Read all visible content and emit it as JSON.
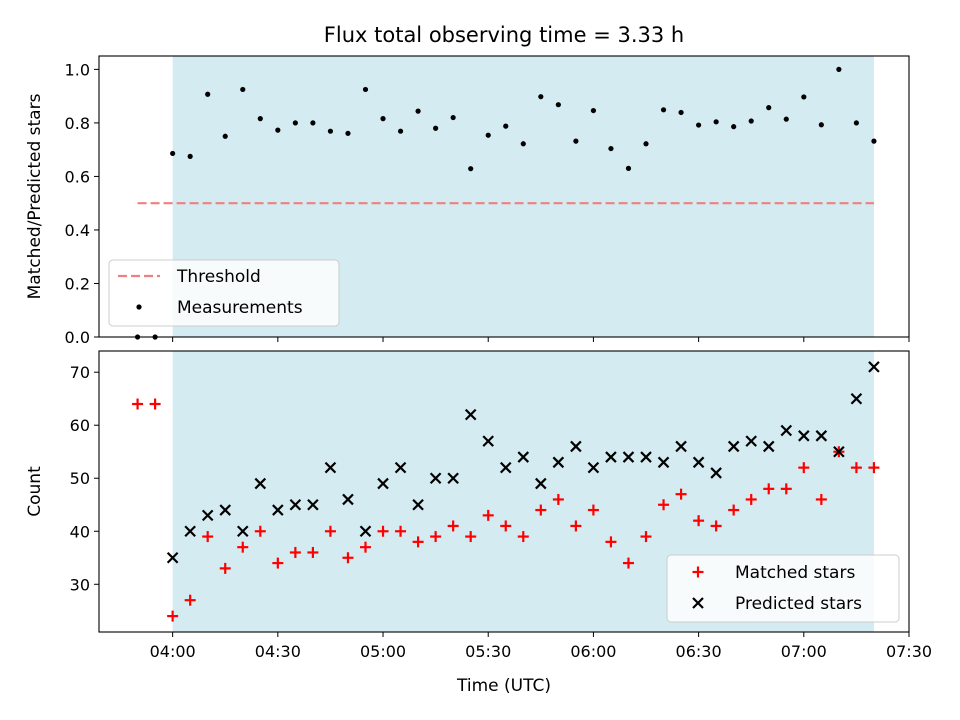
{
  "figure": {
    "title": "Flux total observing time = 3.33 h",
    "xlabel": "Time (UTC)",
    "colors": {
      "observing_window": "#d4ebf1",
      "threshold": "#f08080",
      "measurement": "#000000",
      "matched": "#ff0000",
      "predicted": "#000000"
    }
  },
  "chart_data": [
    {
      "type": "scatter",
      "panel": "top",
      "ylabel": "Matched/Predicted stars",
      "xlim": [
        "03:39",
        "07:30"
      ],
      "ylim": [
        0.0,
        1.05
      ],
      "yticks": [
        0.0,
        0.2,
        0.4,
        0.6,
        0.8,
        1.0
      ],
      "ytick_labels": [
        "0.0",
        "0.2",
        "0.4",
        "0.6",
        "0.8",
        "1.0"
      ],
      "shaded_span": [
        "04:00",
        "07:20"
      ],
      "threshold": {
        "name": "Threshold",
        "value": 0.5,
        "x": [
          "03:50",
          "07:20"
        ]
      },
      "legend_position": "lower-left",
      "series": [
        {
          "name": "Measurements",
          "x": [
            "03:50",
            "03:55",
            "04:00",
            "04:05",
            "04:10",
            "04:15",
            "04:20",
            "04:25",
            "04:30",
            "04:35",
            "04:40",
            "04:45",
            "04:50",
            "04:55",
            "05:00",
            "05:05",
            "05:10",
            "05:15",
            "05:20",
            "05:25",
            "05:30",
            "05:35",
            "05:40",
            "05:45",
            "05:50",
            "05:55",
            "06:00",
            "06:05",
            "06:10",
            "06:15",
            "06:20",
            "06:25",
            "06:30",
            "06:35",
            "06:40",
            "06:45",
            "06:50",
            "06:55",
            "07:00",
            "07:05",
            "07:10",
            "07:15",
            "07:20"
          ],
          "y": [
            0.0,
            0.0,
            0.686,
            0.675,
            0.907,
            0.75,
            0.925,
            0.816,
            0.773,
            0.8,
            0.8,
            0.769,
            0.761,
            0.925,
            0.816,
            0.769,
            0.844,
            0.78,
            0.82,
            0.629,
            0.754,
            0.788,
            0.722,
            0.898,
            0.868,
            0.732,
            0.846,
            0.704,
            0.63,
            0.722,
            0.849,
            0.839,
            0.792,
            0.804,
            0.786,
            0.807,
            0.857,
            0.814,
            0.897,
            0.793,
            1.0,
            0.8,
            0.732
          ]
        }
      ]
    },
    {
      "type": "scatter",
      "panel": "bottom",
      "ylabel": "Count",
      "xlim": [
        "03:39",
        "07:30"
      ],
      "ylim": [
        21,
        74
      ],
      "yticks": [
        30,
        40,
        50,
        60,
        70
      ],
      "ytick_labels": [
        "30",
        "40",
        "50",
        "60",
        "70"
      ],
      "xticks": [
        "04:00",
        "04:30",
        "05:00",
        "05:30",
        "06:00",
        "06:30",
        "07:00",
        "07:30"
      ],
      "xtick_labels": [
        "04:00",
        "04:30",
        "05:00",
        "05:30",
        "06:00",
        "06:30",
        "07:00",
        "07:30"
      ],
      "shaded_span": [
        "04:00",
        "07:20"
      ],
      "legend_position": "lower-right",
      "series": [
        {
          "name": "Matched stars",
          "marker": "plus",
          "x": [
            "03:50",
            "03:55",
            "04:00",
            "04:05",
            "04:10",
            "04:15",
            "04:20",
            "04:25",
            "04:30",
            "04:35",
            "04:40",
            "04:45",
            "04:50",
            "04:55",
            "05:00",
            "05:05",
            "05:10",
            "05:15",
            "05:20",
            "05:25",
            "05:30",
            "05:35",
            "05:40",
            "05:45",
            "05:50",
            "05:55",
            "06:00",
            "06:05",
            "06:10",
            "06:15",
            "06:20",
            "06:25",
            "06:30",
            "06:35",
            "06:40",
            "06:45",
            "06:50",
            "06:55",
            "07:00",
            "07:05",
            "07:10",
            "07:15",
            "07:20"
          ],
          "y": [
            64,
            64,
            24,
            27,
            39,
            33,
            37,
            40,
            34,
            36,
            36,
            40,
            35,
            37,
            40,
            40,
            38,
            39,
            41,
            39,
            43,
            41,
            39,
            44,
            46,
            41,
            44,
            38,
            34,
            39,
            45,
            47,
            42,
            41,
            44,
            46,
            48,
            48,
            52,
            46,
            55,
            52,
            52
          ]
        },
        {
          "name": "Predicted stars",
          "marker": "x",
          "x": [
            "04:00",
            "04:05",
            "04:10",
            "04:15",
            "04:20",
            "04:25",
            "04:30",
            "04:35",
            "04:40",
            "04:45",
            "04:50",
            "04:55",
            "05:00",
            "05:05",
            "05:10",
            "05:15",
            "05:20",
            "05:25",
            "05:30",
            "05:35",
            "05:40",
            "05:45",
            "05:50",
            "05:55",
            "06:00",
            "06:05",
            "06:10",
            "06:15",
            "06:20",
            "06:25",
            "06:30",
            "06:35",
            "06:40",
            "06:45",
            "06:50",
            "06:55",
            "07:00",
            "07:05",
            "07:10",
            "07:15",
            "07:20"
          ],
          "y": [
            35,
            40,
            43,
            44,
            40,
            49,
            44,
            45,
            45,
            52,
            46,
            40,
            49,
            52,
            45,
            50,
            50,
            62,
            57,
            52,
            54,
            49,
            53,
            56,
            52,
            54,
            54,
            54,
            53,
            56,
            53,
            51,
            56,
            57,
            56,
            59,
            58,
            58,
            55,
            65,
            71
          ]
        }
      ]
    }
  ]
}
